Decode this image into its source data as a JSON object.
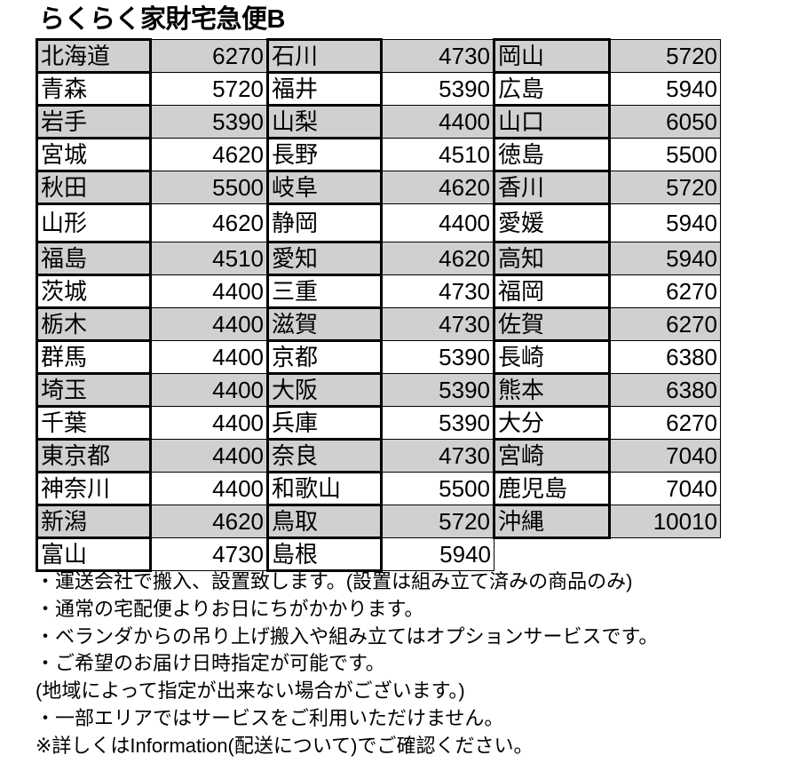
{
  "title": "らくらく家財宅急便B",
  "colors": {
    "shaded_row": "#d0d0d0",
    "border": "#000000"
  },
  "rows": [
    [
      [
        "北海道",
        "6270"
      ],
      [
        "石川",
        "4730"
      ],
      [
        "岡山",
        "5720"
      ]
    ],
    [
      [
        "青森",
        "5720"
      ],
      [
        "福井",
        "5390"
      ],
      [
        "広島",
        "5940"
      ]
    ],
    [
      [
        "岩手",
        "5390"
      ],
      [
        "山梨",
        "4400"
      ],
      [
        "山口",
        "6050"
      ]
    ],
    [
      [
        "宮城",
        "4620"
      ],
      [
        "長野",
        "4510"
      ],
      [
        "徳島",
        "5500"
      ]
    ],
    [
      [
        "秋田",
        "5500"
      ],
      [
        "岐阜",
        "4620"
      ],
      [
        "香川",
        "5720"
      ]
    ],
    [
      [
        "山形",
        "4620"
      ],
      [
        "静岡",
        "4400"
      ],
      [
        "愛媛",
        "5940"
      ]
    ],
    [
      [
        "福島",
        "4510"
      ],
      [
        "愛知",
        "4620"
      ],
      [
        "高知",
        "5940"
      ]
    ],
    [
      [
        "茨城",
        "4400"
      ],
      [
        "三重",
        "4730"
      ],
      [
        "福岡",
        "6270"
      ]
    ],
    [
      [
        "栃木",
        "4400"
      ],
      [
        "滋賀",
        "4730"
      ],
      [
        "佐賀",
        "6270"
      ]
    ],
    [
      [
        "群馬",
        "4400"
      ],
      [
        "京都",
        "5390"
      ],
      [
        "長崎",
        "6380"
      ]
    ],
    [
      [
        "埼玉",
        "4400"
      ],
      [
        "大阪",
        "5390"
      ],
      [
        "熊本",
        "6380"
      ]
    ],
    [
      [
        "千葉",
        "4400"
      ],
      [
        "兵庫",
        "5390"
      ],
      [
        "大分",
        "6270"
      ]
    ],
    [
      [
        "東京都",
        "4400"
      ],
      [
        "奈良",
        "4730"
      ],
      [
        "宮崎",
        "7040"
      ]
    ],
    [
      [
        "神奈川",
        "4400"
      ],
      [
        "和歌山",
        "5500"
      ],
      [
        "鹿児島",
        "7040"
      ]
    ],
    [
      [
        "新潟",
        "4620"
      ],
      [
        "鳥取",
        "5720"
      ],
      [
        "沖縄",
        "10010"
      ]
    ],
    [
      [
        "富山",
        "4730"
      ],
      [
        "島根",
        "5940"
      ]
    ]
  ],
  "notes": [
    "・運送会社で搬入、設置致します。(設置は組み立て済みの商品のみ)",
    "・通常の宅配便よりお日にちがかかります。",
    "・ベランダからの吊り上げ搬入や組み立てはオプションサービスです。",
    "・ご希望のお届け日時指定が可能です。",
    "(地域によって指定が出来ない場合がございます。)",
    "・一部エリアではサービスをご利用いただけません。",
    "※詳しくはInformation(配送について)でご確認ください。"
  ]
}
